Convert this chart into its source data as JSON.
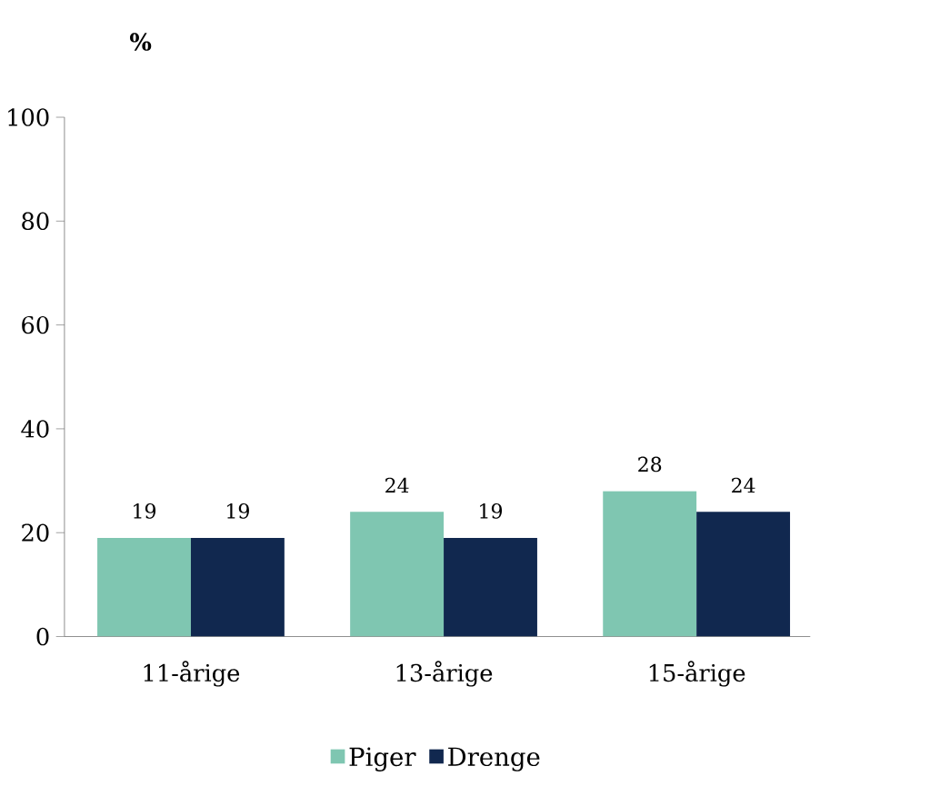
{
  "chart_data": {
    "type": "bar",
    "ylabel": "%",
    "categories": [
      "11-årige",
      "13-årige",
      "15-årige"
    ],
    "series": [
      {
        "name": "Piger",
        "color": "#7fc6b1",
        "values": [
          19,
          24,
          28
        ]
      },
      {
        "name": "Drenge",
        "color": "#11284f",
        "values": [
          19,
          19,
          24
        ]
      }
    ],
    "ylim": [
      0,
      100
    ],
    "yticks": [
      0,
      20,
      40,
      60,
      80,
      100
    ],
    "data_labels": true,
    "legend": "bottom",
    "grid": false
  }
}
